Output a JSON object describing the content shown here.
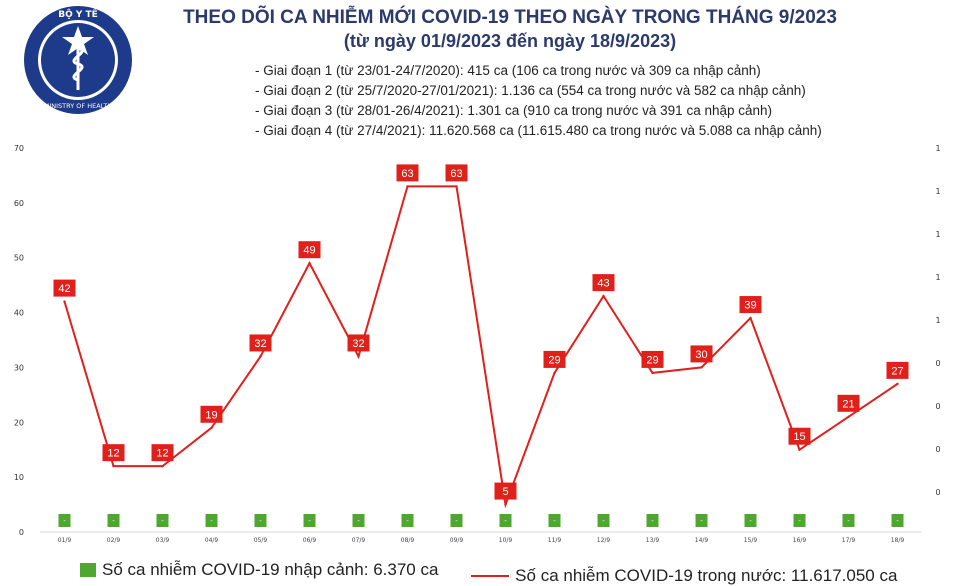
{
  "logo": {
    "top_text": "BỘ Y TẾ",
    "bottom_text": "MINISTRY OF HEALTH"
  },
  "chart_data": {
    "type": "line",
    "title": "THEO DÕI CA NHIỄM MỚI COVID-19 THEO NGÀY TRONG THÁNG 9/2023",
    "subtitle": "(từ ngày 01/9/2023 đến ngày 18/9/2023)",
    "notes": [
      "- Giai đoạn 1 (từ 23/01-24/7/2020): 415 ca (106 ca trong nước và 309 ca nhập cảnh)",
      "- Giai đoạn 2 (từ 25/7/2020-27/01/2021): 1.136 ca (554 ca trong nước và 582 ca nhập cảnh)",
      "- Giai đoạn 3 (từ 28/01-26/4/2021): 1.301 ca (910 ca trong nước và 391 ca nhập cảnh)",
      "- Giai đoạn 4 (từ 27/4/2021): 11.620.568 ca (11.615.480 ca trong nước và 5.088 ca nhập cảnh)"
    ],
    "categories": [
      "01/9",
      "02/9",
      "03/9",
      "04/9",
      "05/9",
      "06/9",
      "07/9",
      "08/9",
      "09/9",
      "10/9",
      "11/9",
      "12/9",
      "13/9",
      "14/9",
      "15/9",
      "16/9",
      "17/9",
      "18/9"
    ],
    "series": [
      {
        "name": "Số ca nhiễm COVID-19 nhập cảnh: 6.370 ca",
        "type": "bar",
        "color": "#4ea72e",
        "values": [
          0,
          0,
          0,
          0,
          0,
          0,
          0,
          0,
          0,
          0,
          0,
          0,
          0,
          0,
          0,
          0,
          0,
          0
        ],
        "value_labels": [
          "-",
          "-",
          "-",
          "-",
          "-",
          "-",
          "-",
          "-",
          "-",
          "-",
          "-",
          "-",
          "-",
          "-",
          "-",
          "-",
          "-",
          "-"
        ]
      },
      {
        "name": "Số ca nhiễm COVID-19 trong nước: 11.617.050 ca",
        "type": "line",
        "color": "#e0201b",
        "values": [
          42,
          12,
          12,
          19,
          32,
          49,
          32,
          63,
          63,
          5,
          29,
          43,
          29,
          30,
          39,
          15,
          21,
          27
        ]
      }
    ],
    "ylim": [
      0,
      70
    ],
    "yticks": [
      0,
      10,
      20,
      30,
      40,
      50,
      60,
      70
    ],
    "y2_tick_labels": [
      "0",
      "0",
      "0",
      "0",
      "1",
      "1",
      "1",
      "1",
      "1"
    ],
    "grid": false,
    "legend": "bottom"
  }
}
